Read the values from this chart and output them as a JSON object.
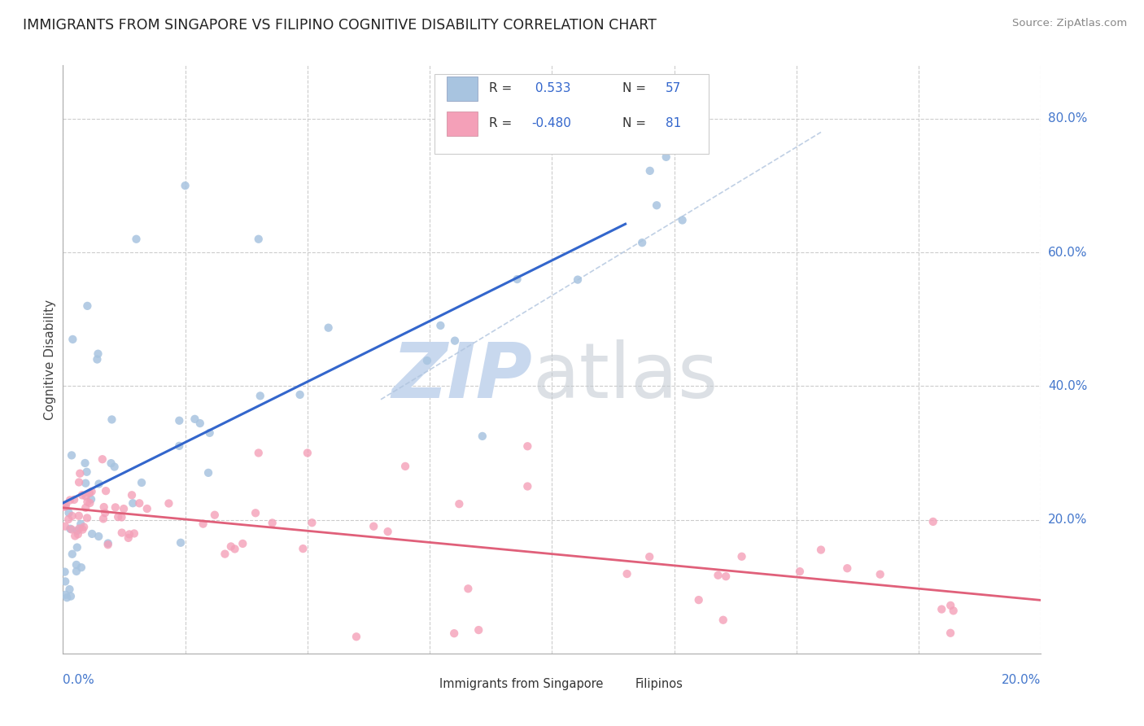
{
  "title": "IMMIGRANTS FROM SINGAPORE VS FILIPINO COGNITIVE DISABILITY CORRELATION CHART",
  "source": "Source: ZipAtlas.com",
  "ylabel": "Cognitive Disability",
  "series1_label": "Immigrants from Singapore",
  "series1_R": 0.533,
  "series1_N": 57,
  "series1_color": "#a8c4e0",
  "series1_trend_color": "#3366cc",
  "series2_label": "Filipinos",
  "series2_R": -0.48,
  "series2_N": 81,
  "series2_color": "#f4a0b8",
  "series2_trend_color": "#e0607a",
  "background_color": "#ffffff",
  "grid_color": "#cccccc",
  "legend_R_color": "#3366cc",
  "xlim": [
    0.0,
    0.2
  ],
  "ylim": [
    0.0,
    0.88
  ],
  "y_ticks": [
    0.2,
    0.4,
    0.6,
    0.8
  ],
  "y_tick_labels": [
    "20.0%",
    "40.0%",
    "60.0%",
    "80.0%"
  ],
  "x_tick_labels_left": "0.0%",
  "x_tick_labels_right": "20.0%"
}
